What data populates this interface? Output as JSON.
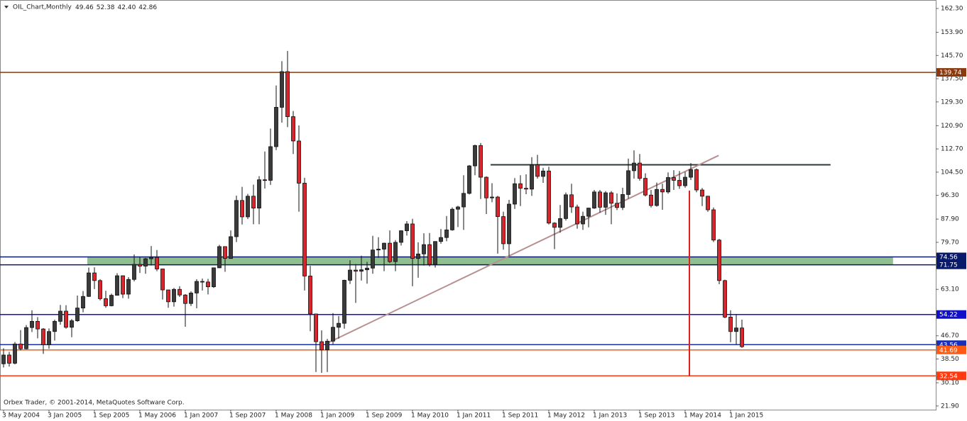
{
  "chart_data": {
    "type": "candlestick",
    "title": "OIL_Chart,Monthly",
    "title_values": [
      "49.46",
      "52.38",
      "42.40",
      "42.86"
    ],
    "footer": "Orbex Trader, © 2001-2014, MetaQuotes Software Corp.",
    "up_color": "#3a3a3a",
    "down_color": "#d9262c",
    "xlim": [
      -0.625,
      164.125
    ],
    "ylim": [
      20.6,
      165.3
    ],
    "yticks": [
      {
        "value": 162.3,
        "label": "162.30"
      },
      {
        "value": 153.9,
        "label": "153.90"
      },
      {
        "value": 145.7,
        "label": "145.70"
      },
      {
        "value": 137.5,
        "label": "137.50"
      },
      {
        "value": 129.3,
        "label": "129.30"
      },
      {
        "value": 120.9,
        "label": "120.90"
      },
      {
        "value": 112.7,
        "label": "112.70"
      },
      {
        "value": 104.5,
        "label": "104.50"
      },
      {
        "value": 96.3,
        "label": "96.30"
      },
      {
        "value": 87.9,
        "label": "87.90"
      },
      {
        "value": 79.7,
        "label": "79.70"
      },
      {
        "value": 63.1,
        "label": "63.10"
      },
      {
        "value": 46.7,
        "label": "46.70"
      },
      {
        "value": 38.5,
        "label": "38.50"
      },
      {
        "value": 30.1,
        "label": "30.10"
      },
      {
        "value": 21.9,
        "label": "21.90"
      }
    ],
    "xticks": [
      {
        "value": 0,
        "label": "3 May 2004"
      },
      {
        "value": 8,
        "label": "3 Jan 2005"
      },
      {
        "value": 16,
        "label": "1 Sep 2005"
      },
      {
        "value": 24,
        "label": "1 May 2006"
      },
      {
        "value": 32,
        "label": "1 Jan 2007"
      },
      {
        "value": 40,
        "label": "1 Sep 2007"
      },
      {
        "value": 48,
        "label": "1 May 2008"
      },
      {
        "value": 56,
        "label": "1 Jan 2009"
      },
      {
        "value": 64,
        "label": "1 Sep 2009"
      },
      {
        "value": 72,
        "label": "1 May 2010"
      },
      {
        "value": 80,
        "label": "1 Jan 2011"
      },
      {
        "value": 88,
        "label": "1 Sep 2011"
      },
      {
        "value": 96,
        "label": "1 May 2012"
      },
      {
        "value": 104,
        "label": "1 Jan 2013"
      },
      {
        "value": 112,
        "label": "1 Sep 2013"
      },
      {
        "value": 120,
        "label": "1 May 2014"
      },
      {
        "value": 128,
        "label": "1 Jan 2015"
      }
    ],
    "levels": [
      {
        "value": 139.74,
        "color": "#8b3a0f"
      },
      {
        "value": 74.56,
        "color": "#0a1a6a"
      },
      {
        "value": 71.75,
        "color": "#0a1a6a"
      },
      {
        "value": 54.22,
        "color": "#1010c8"
      },
      {
        "value": 43.56,
        "color": "#1a2fb8"
      },
      {
        "value": 41.69,
        "color": "#ff5a14"
      },
      {
        "value": 32.54,
        "color": "#ff3a10"
      }
    ],
    "zone": {
      "x": [
        14.75,
        156.6
      ],
      "y": [
        71.75,
        74.56
      ],
      "color": "#8fbf8f"
    },
    "lines": [
      {
        "x": [
          85.75,
          145.6
        ],
        "y": [
          107.1,
          107.1
        ],
        "color": "#2a3a3a"
      },
      {
        "x": [
          56.9,
          125.9
        ],
        "y": [
          44.0,
          110.4
        ],
        "color": "#b89090"
      },
      {
        "x": [
          120.75,
          120.75
        ],
        "y": [
          98,
          32.4
        ],
        "color": "#e0201c"
      }
    ],
    "ohlc": [
      [
        36.8,
        42.3,
        35.5,
        39.9
      ],
      [
        39.9,
        41.0,
        35.8,
        37.0
      ],
      [
        37.0,
        44.5,
        36.6,
        43.8
      ],
      [
        43.8,
        48.7,
        41.5,
        42.1
      ],
      [
        42.1,
        50.5,
        41.9,
        49.6
      ],
      [
        49.6,
        55.7,
        48.0,
        51.8
      ],
      [
        51.8,
        53.3,
        45.8,
        49.1
      ],
      [
        49.1,
        49.4,
        40.3,
        43.5
      ],
      [
        43.5,
        49.3,
        42.1,
        48.2
      ],
      [
        48.2,
        52.4,
        45.0,
        51.8
      ],
      [
        51.8,
        57.6,
        50.6,
        55.4
      ],
      [
        55.4,
        57.5,
        49.2,
        49.7
      ],
      [
        49.7,
        52.6,
        46.2,
        52.0
      ],
      [
        52.0,
        60.9,
        51.6,
        56.5
      ],
      [
        56.5,
        62.5,
        55.0,
        60.6
      ],
      [
        60.6,
        70.8,
        60.4,
        68.9
      ],
      [
        68.9,
        70.9,
        63.2,
        66.2
      ],
      [
        66.2,
        66.7,
        59.2,
        59.8
      ],
      [
        59.8,
        62.6,
        56.6,
        57.3
      ],
      [
        57.3,
        61.6,
        57.1,
        61.0
      ],
      [
        61.0,
        68.8,
        60.9,
        67.9
      ],
      [
        67.9,
        68.0,
        60.0,
        61.4
      ],
      [
        61.4,
        67.4,
        59.8,
        66.6
      ],
      [
        66.6,
        75.4,
        65.9,
        71.9
      ],
      [
        71.9,
        74.6,
        68.9,
        71.3
      ],
      [
        71.3,
        74.2,
        68.6,
        73.9
      ],
      [
        73.9,
        78.4,
        71.5,
        74.4
      ],
      [
        74.4,
        77.0,
        69.5,
        70.3
      ],
      [
        70.3,
        70.4,
        59.5,
        62.9
      ],
      [
        62.9,
        62.9,
        56.6,
        58.7
      ],
      [
        58.7,
        63.6,
        57.0,
        63.1
      ],
      [
        63.1,
        64.2,
        60.4,
        61.1
      ],
      [
        61.1,
        61.4,
        49.9,
        58.1
      ],
      [
        58.1,
        62.4,
        57.2,
        61.8
      ],
      [
        61.8,
        66.7,
        56.4,
        65.9
      ],
      [
        65.9,
        66.9,
        62.7,
        65.7
      ],
      [
        65.7,
        66.8,
        61.3,
        64.0
      ],
      [
        64.0,
        70.8,
        63.6,
        70.7
      ],
      [
        70.7,
        78.8,
        70.6,
        78.2
      ],
      [
        78.2,
        78.3,
        69.3,
        74.0
      ],
      [
        74.0,
        83.9,
        73.9,
        81.7
      ],
      [
        81.7,
        96.2,
        79.8,
        94.5
      ],
      [
        94.5,
        99.3,
        86.0,
        88.7
      ],
      [
        88.7,
        96.8,
        87.9,
        96.0
      ],
      [
        96.0,
        100.1,
        86.1,
        91.8
      ],
      [
        91.8,
        103.1,
        86.1,
        101.8
      ],
      [
        101.8,
        111.8,
        98.7,
        101.6
      ],
      [
        101.6,
        119.9,
        100.0,
        113.5
      ],
      [
        113.5,
        135.1,
        112.3,
        127.4
      ],
      [
        127.4,
        143.7,
        122.0,
        140.0
      ],
      [
        140.0,
        147.3,
        120.4,
        124.1
      ],
      [
        124.1,
        126.1,
        110.9,
        115.5
      ],
      [
        115.5,
        121.0,
        90.5,
        100.6
      ],
      [
        100.6,
        102.5,
        62.7,
        67.8
      ],
      [
        67.8,
        71.4,
        48.3,
        54.4
      ],
      [
        54.4,
        54.5,
        33.9,
        44.6
      ],
      [
        44.6,
        48.6,
        33.6,
        41.7
      ],
      [
        41.7,
        45.6,
        33.9,
        44.8
      ],
      [
        44.8,
        54.7,
        43.8,
        49.7
      ],
      [
        49.7,
        53.7,
        45.7,
        51.1
      ],
      [
        51.1,
        66.5,
        49.2,
        66.3
      ],
      [
        66.3,
        73.4,
        65.0,
        69.9
      ],
      [
        69.9,
        72.0,
        58.3,
        69.5
      ],
      [
        69.5,
        75.0,
        66.2,
        70.0
      ],
      [
        70.0,
        72.8,
        65.1,
        70.6
      ],
      [
        70.6,
        82.0,
        68.6,
        77.0
      ],
      [
        77.0,
        81.5,
        74.2,
        77.3
      ],
      [
        77.3,
        79.6,
        69.5,
        79.4
      ],
      [
        79.4,
        83.9,
        72.4,
        72.9
      ],
      [
        72.9,
        80.5,
        69.5,
        79.7
      ],
      [
        79.7,
        83.9,
        78.6,
        83.8
      ],
      [
        83.8,
        87.2,
        82.1,
        86.2
      ],
      [
        86.2,
        88.0,
        64.2,
        74.0
      ],
      [
        74.0,
        79.7,
        67.2,
        75.6
      ],
      [
        75.6,
        82.9,
        71.5,
        78.9
      ],
      [
        78.9,
        83.0,
        71.2,
        71.9
      ],
      [
        71.9,
        80.0,
        70.8,
        80.0
      ],
      [
        80.0,
        84.4,
        79.2,
        81.4
      ],
      [
        81.4,
        89.0,
        80.1,
        84.1
      ],
      [
        84.1,
        92.0,
        83.8,
        91.4
      ],
      [
        91.4,
        92.6,
        85.1,
        92.2
      ],
      [
        92.2,
        103.4,
        84.1,
        97.0
      ],
      [
        97.0,
        107.0,
        96.6,
        106.7
      ],
      [
        106.7,
        114.2,
        103.4,
        113.9
      ],
      [
        113.9,
        114.8,
        95.0,
        102.7
      ],
      [
        102.7,
        103.0,
        89.7,
        95.4
      ],
      [
        95.4,
        100.6,
        93.9,
        95.7
      ],
      [
        95.7,
        96.1,
        75.7,
        88.8
      ],
      [
        88.8,
        90.5,
        77.1,
        79.2
      ],
      [
        79.2,
        94.7,
        74.9,
        93.2
      ],
      [
        93.2,
        102.4,
        91.5,
        100.4
      ],
      [
        100.4,
        103.4,
        92.5,
        98.8
      ],
      [
        98.8,
        103.7,
        96.7,
        98.5
      ],
      [
        98.5,
        109.8,
        96.1,
        107.1
      ],
      [
        107.1,
        110.6,
        102.2,
        103.0
      ],
      [
        103.0,
        106.0,
        100.7,
        104.9
      ],
      [
        104.9,
        106.4,
        86.0,
        86.5
      ],
      [
        86.5,
        86.8,
        77.3,
        85.0
      ],
      [
        85.0,
        92.9,
        83.1,
        88.1
      ],
      [
        88.1,
        97.3,
        87.4,
        96.5
      ],
      [
        96.5,
        100.4,
        90.1,
        92.2
      ],
      [
        92.2,
        93.0,
        84.5,
        86.2
      ],
      [
        86.2,
        90.5,
        84.1,
        88.9
      ],
      [
        88.9,
        91.9,
        85.0,
        91.8
      ],
      [
        91.8,
        98.2,
        91.5,
        97.5
      ],
      [
        97.5,
        98.2,
        90.2,
        92.1
      ],
      [
        92.1,
        97.8,
        89.4,
        97.2
      ],
      [
        97.2,
        97.8,
        86.1,
        93.5
      ],
      [
        93.5,
        97.0,
        91.1,
        92.0
      ],
      [
        92.0,
        99.0,
        91.1,
        96.6
      ],
      [
        96.6,
        109.3,
        95.2,
        105.0
      ],
      [
        105.0,
        112.2,
        102.2,
        107.7
      ],
      [
        107.7,
        110.9,
        101.5,
        102.3
      ],
      [
        102.3,
        104.1,
        95.9,
        96.4
      ],
      [
        96.4,
        98.2,
        92.0,
        92.7
      ],
      [
        92.7,
        100.8,
        92.3,
        98.4
      ],
      [
        98.4,
        100.4,
        91.2,
        97.5
      ],
      [
        97.5,
        104.4,
        96.9,
        102.6
      ],
      [
        102.6,
        105.2,
        98.2,
        101.6
      ],
      [
        101.6,
        104.9,
        98.6,
        99.7
      ],
      [
        99.7,
        104.6,
        99.0,
        102.7
      ],
      [
        102.7,
        107.7,
        101.7,
        105.4
      ],
      [
        105.4,
        105.8,
        97.4,
        98.2
      ],
      [
        98.2,
        98.9,
        92.5,
        96.0
      ],
      [
        96.0,
        96.1,
        90.5,
        91.2
      ],
      [
        91.2,
        92.0,
        79.8,
        80.5
      ],
      [
        80.5,
        80.9,
        64.9,
        66.2
      ],
      [
        66.2,
        66.5,
        52.9,
        53.3
      ],
      [
        53.3,
        55.7,
        44.4,
        48.2
      ],
      [
        48.2,
        54.2,
        43.6,
        49.46
      ],
      [
        49.46,
        52.38,
        42.4,
        42.86
      ]
    ]
  }
}
